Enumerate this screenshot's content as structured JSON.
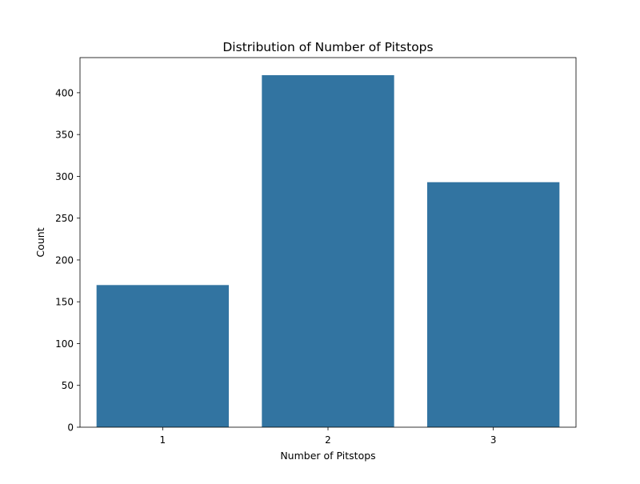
{
  "chart_data": {
    "type": "bar",
    "title": "Distribution of Number of Pitstops",
    "xlabel": "Number of Pitstops",
    "ylabel": "Count",
    "categories": [
      "1",
      "2",
      "3"
    ],
    "values": [
      170,
      421,
      293
    ],
    "ylim": [
      0,
      442
    ],
    "yticks": [
      0,
      50,
      100,
      150,
      200,
      250,
      300,
      350,
      400
    ],
    "grid": false,
    "legend": "none",
    "bar_color": "#3274a1"
  }
}
